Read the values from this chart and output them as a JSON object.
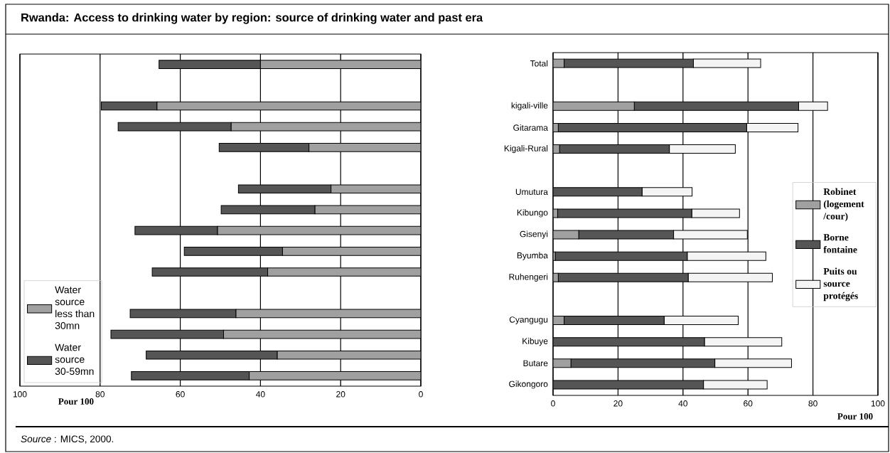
{
  "chart_data": [
    {
      "type": "bar",
      "orientation": "horizontal",
      "stacked": true,
      "title": "Rwanda: Access to drinking water by region: source of drinking water and past era",
      "categories": [
        null,
        null,
        null,
        null,
        null,
        null,
        null,
        null,
        null,
        null,
        null,
        null,
        null,
        null,
        null,
        null
      ],
      "series": [
        {
          "name": "Water source less than 30mn",
          "color": "#a0a0a0",
          "values": [
            40.0,
            null,
            65.8,
            47.3,
            27.9,
            null,
            22.4,
            26.4,
            50.7,
            34.5,
            38.2,
            null,
            46.1,
            49.2,
            35.8,
            42.8
          ]
        },
        {
          "name": "Water source 30-59mn",
          "color": "#555555",
          "values": [
            25.3,
            null,
            13.9,
            28.2,
            22.4,
            null,
            23.1,
            23.4,
            20.6,
            24.5,
            28.8,
            null,
            26.4,
            28.1,
            32.7,
            29.4
          ]
        }
      ],
      "xlim": [
        100,
        0
      ],
      "xticks": [
        100,
        80,
        60,
        40,
        20,
        0
      ],
      "xlabel": "Pour 100",
      "grid": "x",
      "legend": "bottom left",
      "tick_labels": "x",
      "annotations": [
        "*Source* : MICS, 2000."
      ]
    },
    {
      "type": "bar",
      "orientation": "horizontal",
      "stacked": true,
      "categories": [
        "Total",
        null,
        "kigali-ville",
        "Gitarama",
        "Kigali-Rural",
        null,
        "Umutura",
        "Kibungo",
        "Gisenyi",
        "Byumba",
        "Ruhengeri",
        null,
        "Cyangugu",
        "Kibuye",
        "Butare",
        "Gikongoro"
      ],
      "series": [
        {
          "name": "Robinet (logement /cour)",
          "color": "#a0a0a0",
          "values": [
            3.4,
            null,
            25.0,
            1.6,
            2.0,
            null,
            0,
            1.4,
            7.9,
            0.7,
            1.6,
            null,
            3.4,
            0,
            5.5,
            0
          ]
        },
        {
          "name": "Borne fontaine",
          "color": "#555555",
          "values": [
            39.8,
            null,
            50.6,
            58.0,
            33.8,
            null,
            27.4,
            41.3,
            29.2,
            40.6,
            40.0,
            null,
            30.8,
            46.6,
            44.3,
            46.3
          ]
        },
        {
          "name": "Puits ou source protégés",
          "color": "#f4f4f4",
          "values": [
            20.7,
            null,
            8.9,
            15.8,
            20.3,
            null,
            15.4,
            14.7,
            22.7,
            24.2,
            25.9,
            null,
            22.8,
            23.8,
            23.6,
            19.6
          ]
        }
      ],
      "xlim": [
        0,
        100
      ],
      "xticks": [
        0,
        20,
        40,
        60,
        80,
        100
      ],
      "xlabel": "Pour 100",
      "grid": "x",
      "legend": "right"
    }
  ]
}
